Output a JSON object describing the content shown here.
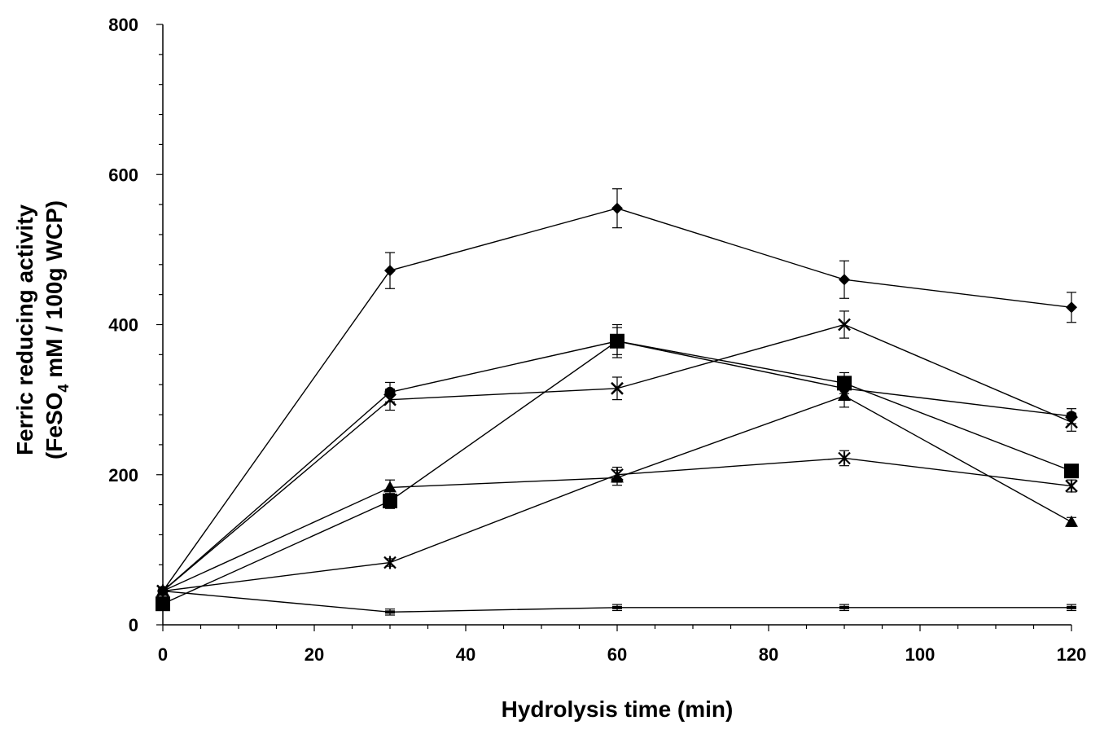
{
  "chart_data": {
    "type": "line",
    "xlabel": "Hydrolysis time (min)",
    "ylabel_line1": "Ferric reducing activity",
    "ylabel_line2_pre": "(FeSO",
    "ylabel_line2_sub": "4",
    "ylabel_line2_post": " mM / 100g WCP)",
    "xlim": [
      0,
      120
    ],
    "ylim": [
      0,
      800
    ],
    "x_ticks": [
      0,
      20,
      40,
      60,
      80,
      100,
      120
    ],
    "y_ticks": [
      0,
      200,
      400,
      600,
      800
    ],
    "x_tick_labels": [
      "0",
      "20",
      "40",
      "60",
      "80",
      "100",
      "120"
    ],
    "y_tick_labels": [
      "0",
      "200",
      "400",
      "600",
      "800"
    ],
    "grid": false,
    "legend": "none",
    "x": [
      0,
      30,
      60,
      90,
      120
    ],
    "series": [
      {
        "marker": "diamond",
        "values": [
          45,
          472,
          555,
          460,
          423
        ],
        "errors": [
          5,
          24,
          26,
          25,
          20
        ]
      },
      {
        "marker": "circle",
        "values": [
          45,
          310,
          378,
          315,
          278
        ],
        "errors": [
          5,
          13,
          18,
          12,
          10
        ]
      },
      {
        "marker": "x",
        "values": [
          45,
          300,
          315,
          400,
          270
        ],
        "errors": [
          5,
          14,
          15,
          18,
          12
        ]
      },
      {
        "marker": "square",
        "values": [
          28,
          165,
          378,
          322,
          205
        ],
        "errors": [
          5,
          10,
          22,
          14,
          8
        ]
      },
      {
        "marker": "triangle",
        "values": [
          45,
          183,
          196,
          305,
          137
        ],
        "errors": [
          5,
          10,
          10,
          15,
          6
        ]
      },
      {
        "marker": "star",
        "values": [
          45,
          83,
          200,
          222,
          185
        ],
        "errors": [
          5,
          5,
          10,
          10,
          8
        ]
      },
      {
        "marker": "dash",
        "values": [
          45,
          17,
          23,
          23,
          23
        ],
        "errors": [
          5,
          4,
          4,
          4,
          4
        ]
      }
    ]
  }
}
